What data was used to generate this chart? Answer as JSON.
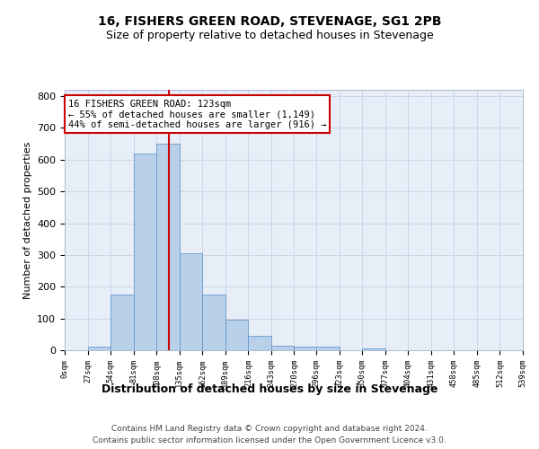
{
  "title": "16, FISHERS GREEN ROAD, STEVENAGE, SG1 2PB",
  "subtitle": "Size of property relative to detached houses in Stevenage",
  "xlabel": "Distribution of detached houses by size in Stevenage",
  "ylabel": "Number of detached properties",
  "bin_edges": [
    0,
    27,
    54,
    81,
    108,
    135,
    162,
    189,
    216,
    243,
    270,
    296,
    323,
    350,
    377,
    404,
    431,
    458,
    485,
    512,
    539
  ],
  "bar_heights": [
    0,
    10,
    175,
    620,
    650,
    305,
    175,
    95,
    45,
    15,
    10,
    10,
    0,
    5,
    0,
    0,
    0,
    0,
    0,
    0
  ],
  "bar_color": "#b8d0ea",
  "bar_edgecolor": "#6699cc",
  "property_size": 123,
  "vline_color": "#cc0000",
  "annotation_text": "16 FISHERS GREEN ROAD: 123sqm\n← 55% of detached houses are smaller (1,149)\n44% of semi-detached houses are larger (916) →",
  "annotation_box_color": "#cc0000",
  "ylim": [
    0,
    820
  ],
  "yticks": [
    0,
    100,
    200,
    300,
    400,
    500,
    600,
    700,
    800
  ],
  "tick_labels": [
    "0sqm",
    "27sqm",
    "54sqm",
    "81sqm",
    "108sqm",
    "135sqm",
    "162sqm",
    "189sqm",
    "216sqm",
    "243sqm",
    "270sqm",
    "296sqm",
    "323sqm",
    "350sqm",
    "377sqm",
    "404sqm",
    "431sqm",
    "458sqm",
    "485sqm",
    "512sqm",
    "539sqm"
  ],
  "grid_color": "#ccd6e8",
  "background_color": "#e8eef8",
  "footer_line1": "Contains HM Land Registry data © Crown copyright and database right 2024.",
  "footer_line2": "Contains public sector information licensed under the Open Government Licence v3.0.",
  "title_fontsize": 10,
  "subtitle_fontsize": 9
}
